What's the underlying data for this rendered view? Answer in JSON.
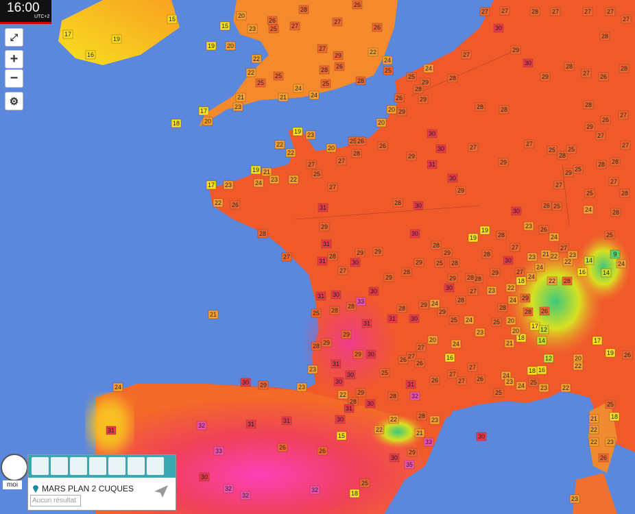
{
  "header": {
    "time": "16:00",
    "timezone": "UTC+2"
  },
  "controls": {
    "zoom_in": "+",
    "zoom_out": "−"
  },
  "user": "moi",
  "location": "MARS PLAN 2 CUQUES",
  "search_placeholder": "Aucun résultat",
  "temperatures": [
    15,
    17,
    19,
    16,
    20,
    15,
    23,
    25,
    26,
    28,
    27,
    27,
    26,
    26,
    19,
    20,
    22,
    22,
    25,
    25,
    24,
    27,
    28,
    26,
    29,
    22,
    24,
    25,
    28,
    24,
    25,
    21,
    17,
    23,
    21,
    18,
    20,
    19,
    23,
    22,
    20,
    22,
    25,
    20,
    26,
    26,
    19,
    21,
    17,
    23,
    24,
    23,
    22,
    22,
    26,
    28,
    27,
    27,
    25,
    27,
    28,
    27,
    31,
    29,
    31,
    31,
    28,
    27,
    30,
    29,
    29,
    28,
    30,
    30,
    29,
    30,
    31,
    30,
    30,
    29,
    27,
    29,
    27,
    29,
    28,
    28,
    28,
    27,
    30,
    27,
    27,
    28,
    27,
    27,
    27,
    28,
    27,
    28,
    27,
    26,
    28,
    29,
    30,
    29,
    24,
    25,
    28,
    26,
    20,
    29,
    29,
    25,
    31,
    30,
    28,
    28,
    33,
    30,
    31,
    31,
    29,
    29,
    29,
    30,
    30,
    30,
    31,
    28,
    23,
    23,
    29,
    30,
    28,
    31,
    32,
    26,
    27,
    27,
    27,
    24,
    16,
    20,
    27,
    27,
    26,
    26,
    24,
    25,
    24,
    23,
    25,
    28,
    20,
    18,
    17,
    12,
    14,
    12,
    16,
    18,
    21,
    20,
    24,
    24,
    25,
    23,
    22,
    26,
    25,
    23,
    20,
    22,
    17,
    19,
    26,
    22,
    28,
    14,
    16,
    14,
    9,
    24,
    25,
    24,
    25,
    27,
    28,
    28,
    25,
    28,
    28,
    27,
    29,
    27,
    26,
    27,
    28,
    28,
    25,
    25,
    29,
    27,
    25,
    26,
    30,
    23,
    26,
    24,
    22,
    22,
    27,
    23,
    21,
    23,
    24,
    24,
    22,
    18,
    29,
    28,
    26,
    24,
    23,
    28,
    27,
    28,
    30,
    29,
    29,
    30,
    28,
    29,
    28,
    29,
    28,
    29,
    28,
    25,
    29,
    28,
    28,
    28,
    27,
    27,
    30,
    29,
    19,
    19,
    21,
    24,
    30,
    29,
    31,
    32,
    31,
    31,
    30,
    15,
    22,
    22,
    23,
    28,
    21,
    29,
    30,
    33,
    26,
    26,
    33,
    35,
    30,
    32,
    32,
    32,
    18,
    25,
    25,
    18,
    21,
    22,
    22,
    23,
    26,
    23,
    22,
    28,
    31,
    30,
    25
  ]
}
